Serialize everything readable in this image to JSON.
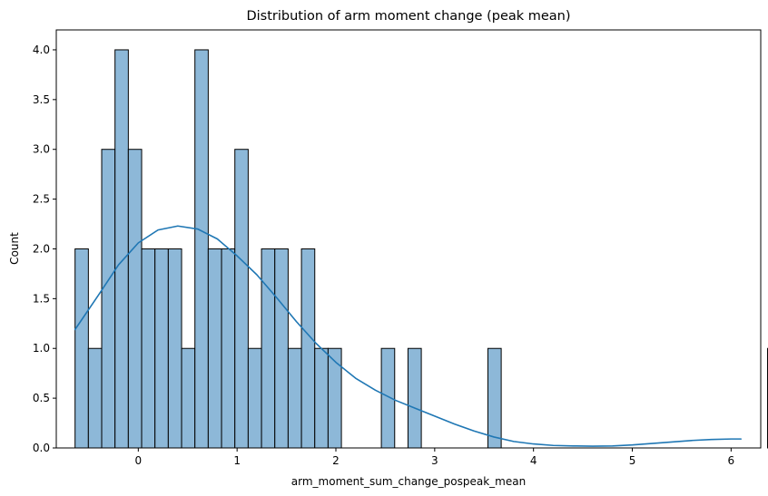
{
  "chart_data": {
    "type": "bar",
    "title": "Distribution of arm moment change (peak mean)",
    "xlabel": "arm_moment_sum_change_pospeak_mean",
    "ylabel": "Count",
    "xlim": [
      -0.83,
      6.3
    ],
    "ylim": [
      0,
      4.2
    ],
    "xticks": [
      0,
      1,
      2,
      3,
      4,
      5,
      6
    ],
    "xtick_labels": [
      "0",
      "1",
      "2",
      "3",
      "4",
      "5",
      "6"
    ],
    "yticks": [
      0,
      0.5,
      1,
      1.5,
      2,
      2.5,
      3,
      3.5,
      4
    ],
    "ytick_labels": [
      "0.0",
      "0.5",
      "1.0",
      "1.5",
      "2.0",
      "2.5",
      "3.0",
      "3.5",
      "4.0"
    ],
    "grid": false,
    "bins": {
      "start": -0.64,
      "width": 0.13479,
      "counts": [
        2,
        1,
        3,
        4,
        3,
        2,
        2,
        2,
        1,
        4,
        2,
        2,
        3,
        1,
        2,
        2,
        1,
        2,
        1,
        1,
        0,
        0,
        0,
        1,
        0,
        1,
        0,
        0,
        0,
        0,
        0,
        1,
        0,
        0,
        0,
        0,
        0,
        0,
        0,
        0,
        0,
        0,
        0,
        0,
        0,
        0,
        0,
        0,
        0,
        0,
        0,
        0,
        1
      ]
    },
    "kde": {
      "x": [
        -0.64,
        -0.4,
        -0.2,
        0,
        0.2,
        0.4,
        0.6,
        0.8,
        1,
        1.2,
        1.4,
        1.6,
        1.8,
        2,
        2.2,
        2.4,
        2.6,
        2.8,
        3,
        3.2,
        3.4,
        3.6,
        3.8,
        4,
        4.2,
        4.4,
        4.6,
        4.8,
        5,
        5.2,
        5.4,
        5.6,
        5.8,
        6,
        6.1
      ],
      "y": [
        1.19,
        1.54,
        1.84,
        2.06,
        2.19,
        2.23,
        2.2,
        2.1,
        1.93,
        1.74,
        1.51,
        1.27,
        1.05,
        0.86,
        0.7,
        0.58,
        0.48,
        0.4,
        0.32,
        0.24,
        0.17,
        0.11,
        0.065,
        0.04,
        0.025,
        0.02,
        0.018,
        0.02,
        0.03,
        0.045,
        0.06,
        0.075,
        0.085,
        0.09,
        0.09
      ]
    },
    "colors": {
      "bar_fill": "#8db8d8",
      "bar_edge": "#000000",
      "kde_line": "#1f77b4"
    }
  }
}
